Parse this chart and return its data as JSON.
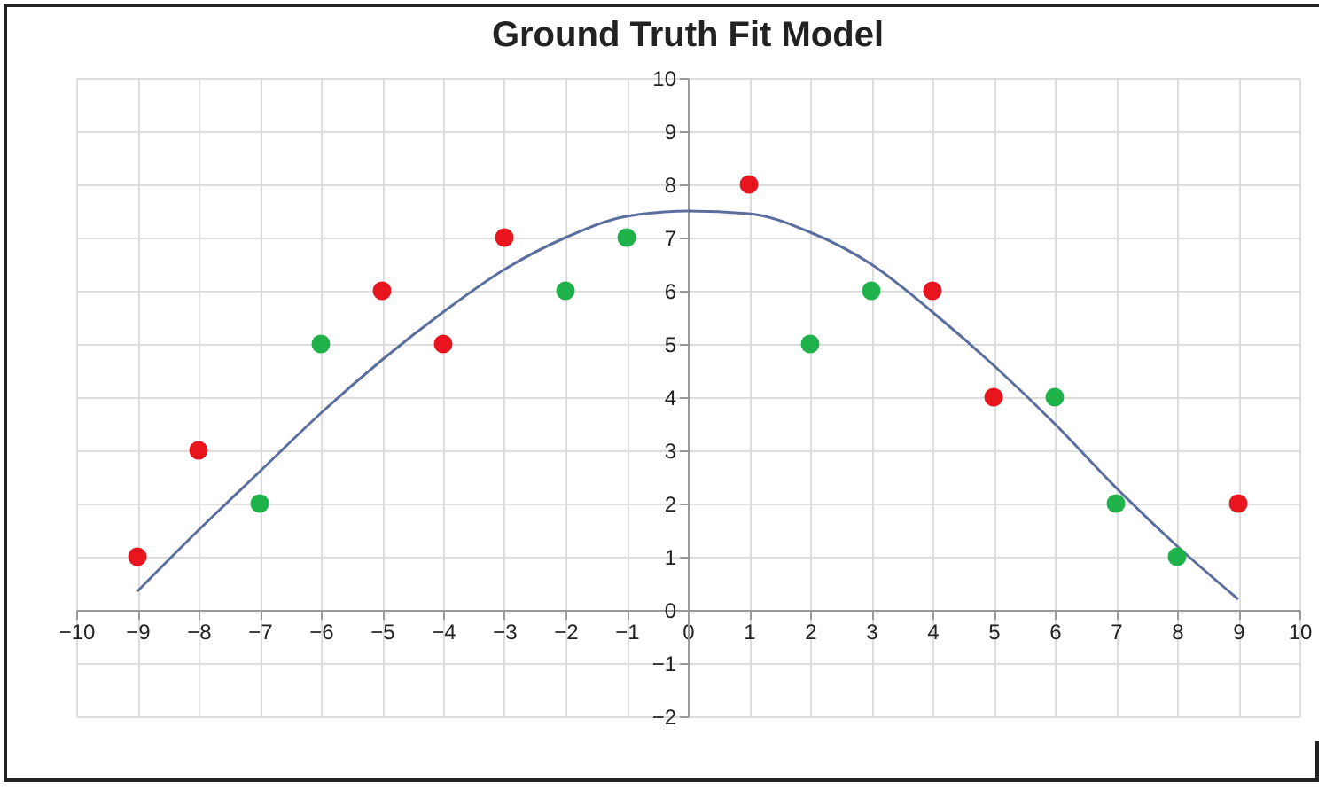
{
  "chart_data": {
    "type": "scatter",
    "title": "Ground Truth Fit Model",
    "xlim": [
      -10,
      10
    ],
    "xticks": [
      -10,
      -9,
      -8,
      -7,
      -6,
      -5,
      -4,
      -3,
      -2,
      -1,
      0,
      1,
      2,
      3,
      4,
      5,
      6,
      7,
      8,
      9,
      10
    ],
    "ylim": [
      -2,
      10
    ],
    "yticks": [
      -2,
      -1,
      0,
      1,
      2,
      3,
      4,
      5,
      6,
      7,
      8,
      9,
      10
    ],
    "grid": true,
    "series": [
      {
        "type": "line",
        "marker": "none",
        "color": "#5b6f9e",
        "x": [
          -9,
          -8,
          -7,
          -6,
          -5,
          -4,
          -3,
          -2,
          -1,
          0,
          1,
          2,
          3,
          4,
          5,
          6,
          7,
          8,
          9
        ],
        "values": [
          0.35,
          1.5,
          2.6,
          3.7,
          4.7,
          5.6,
          6.4,
          7.0,
          7.4,
          7.5,
          7.45,
          7.1,
          6.5,
          5.6,
          4.6,
          3.5,
          2.3,
          1.2,
          0.2
        ]
      },
      {
        "type": "scatter",
        "marker": "circle",
        "color": "#e8141e",
        "x": [
          -9,
          -8,
          -5,
          -4,
          -3,
          1,
          4,
          5,
          9
        ],
        "values": [
          1,
          3,
          6,
          5,
          7,
          8,
          6,
          4,
          2
        ]
      },
      {
        "type": "scatter",
        "marker": "circle",
        "color": "#1fb24a",
        "x": [
          -7,
          -6,
          -2,
          -1,
          2,
          3,
          6,
          7,
          8
        ],
        "values": [
          2,
          5,
          6,
          7,
          5,
          6,
          4,
          2,
          1
        ]
      }
    ]
  }
}
